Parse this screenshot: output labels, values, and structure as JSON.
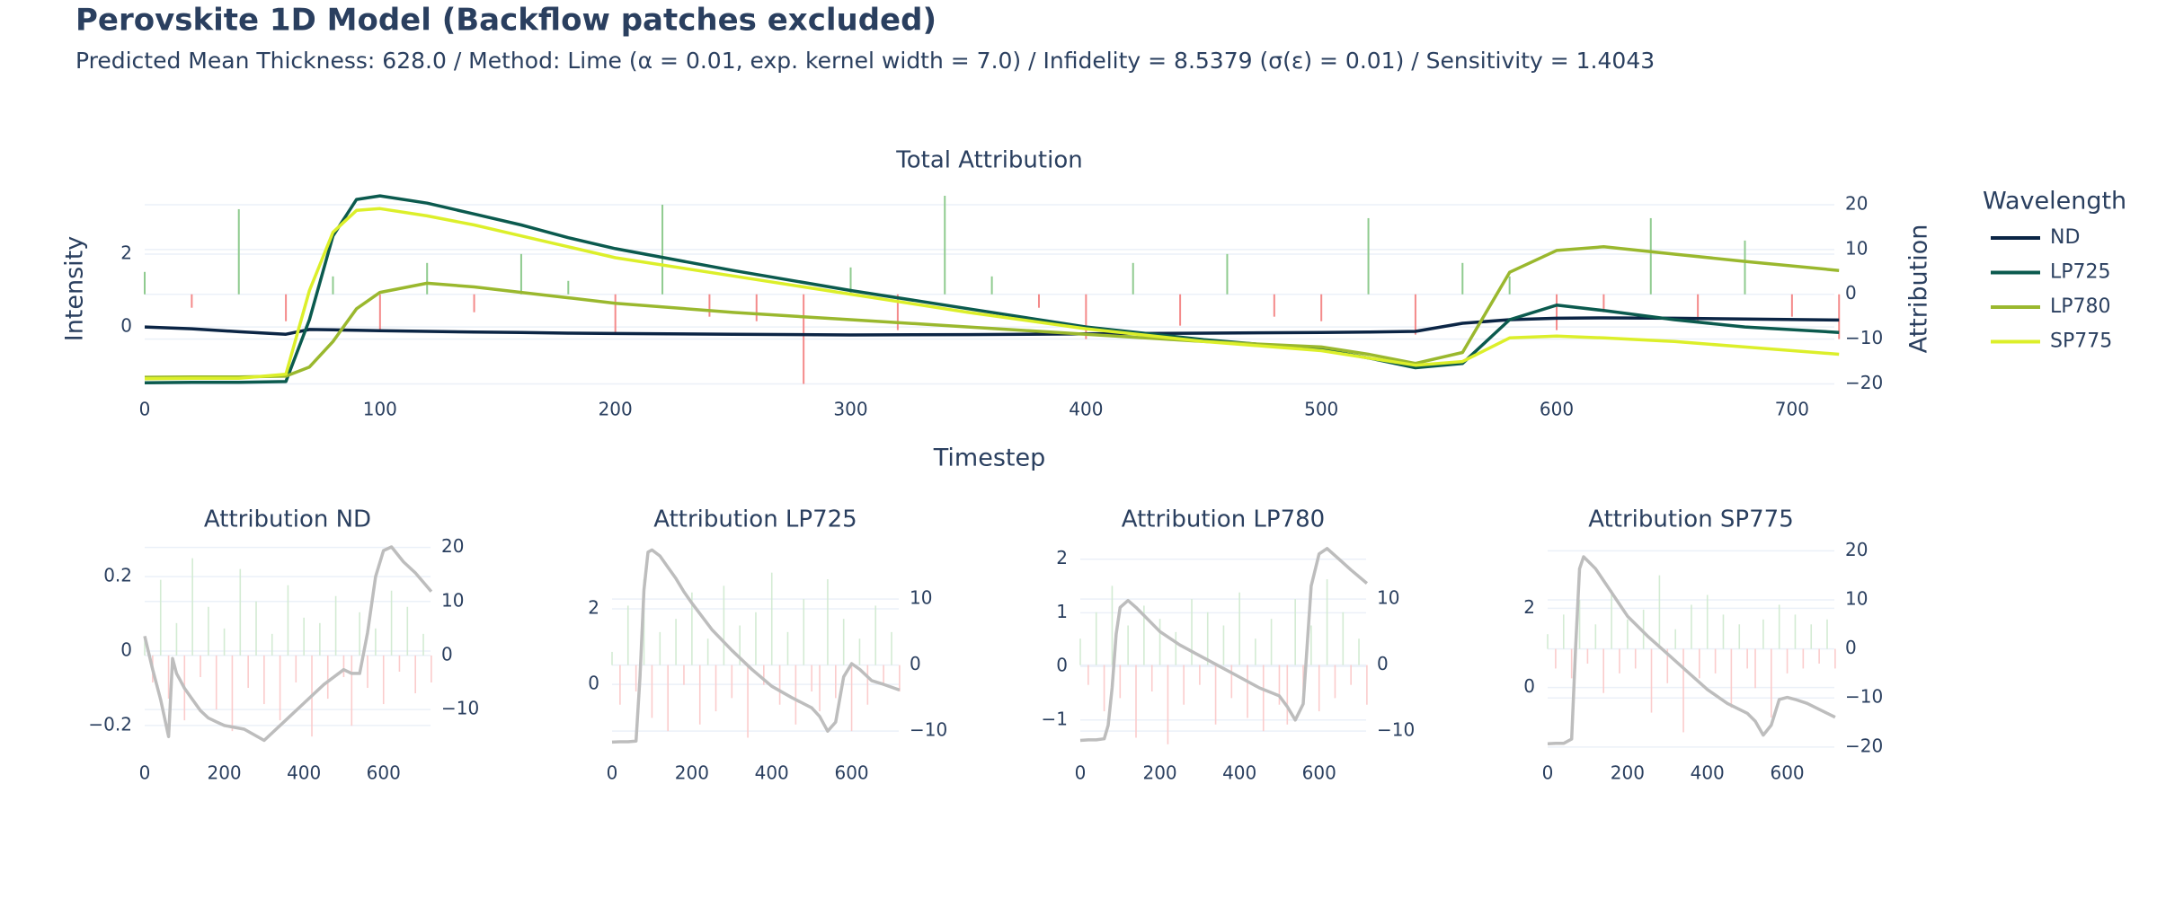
{
  "header": {
    "title": "Perovskite 1D Model (Backflow patches excluded)",
    "subtitle": "Predicted Mean Thickness: 628.0 / Method: Lime (α = 0.01, exp. kernel width = 7.0) / Infidelity = 8.5379 (σ(ε) = 0.01) / Sensitivity = 1.4043"
  },
  "chart_data": [
    {
      "type": "combo",
      "title": "Total Attribution",
      "x_label": "Timestep",
      "y_label": "Intensity",
      "y2_label": "Attribution",
      "legend_title": "Wavelength",
      "grid": true,
      "xlim": [
        0,
        718
      ],
      "xticks": [
        0,
        100,
        200,
        300,
        400,
        500,
        600,
        700
      ],
      "ylim": [
        -1.6,
        3.7
      ],
      "yticks": [
        0,
        2
      ],
      "y2lim": [
        -20.3,
        22.8
      ],
      "y2ticks": [
        {
          "value": -20,
          "label": "−20"
        },
        {
          "value": -10,
          "label": "−10"
        },
        0,
        10,
        20
      ],
      "series": [
        {
          "name": "ND",
          "color": "#0b2545",
          "axis": "y",
          "x": [
            0,
            20,
            40,
            60,
            70,
            80,
            90,
            100,
            120,
            140,
            160,
            180,
            200,
            250,
            300,
            350,
            400,
            450,
            500,
            520,
            540,
            560,
            580,
            600,
            620,
            650,
            680,
            720
          ],
          "values": [
            0,
            -0.05,
            -0.13,
            -0.2,
            -0.07,
            -0.08,
            -0.09,
            -0.1,
            -0.12,
            -0.14,
            -0.15,
            -0.17,
            -0.18,
            -0.2,
            -0.22,
            -0.21,
            -0.19,
            -0.17,
            -0.15,
            -0.14,
            -0.12,
            0.1,
            0.2,
            0.24,
            0.25,
            0.24,
            0.22,
            0.19
          ]
        },
        {
          "name": "LP725",
          "color": "#0b5a4e",
          "axis": "y",
          "x": [
            0,
            20,
            40,
            60,
            70,
            80,
            90,
            100,
            120,
            140,
            160,
            180,
            200,
            250,
            300,
            350,
            400,
            450,
            500,
            520,
            540,
            560,
            580,
            600,
            620,
            650,
            680,
            720
          ],
          "values": [
            -1.53,
            -1.52,
            -1.52,
            -1.5,
            0.2,
            2.5,
            3.5,
            3.6,
            3.4,
            3.1,
            2.8,
            2.45,
            2.15,
            1.55,
            1.0,
            0.5,
            0.0,
            -0.35,
            -0.62,
            -0.85,
            -1.12,
            -1.0,
            0.2,
            0.6,
            0.45,
            0.2,
            0.0,
            -0.15
          ]
        },
        {
          "name": "LP780",
          "color": "#9ab82e",
          "axis": "y",
          "x": [
            0,
            20,
            40,
            60,
            70,
            80,
            90,
            100,
            120,
            140,
            160,
            180,
            200,
            250,
            300,
            350,
            400,
            450,
            500,
            520,
            540,
            560,
            580,
            600,
            620,
            650,
            680,
            720
          ],
          "values": [
            -1.38,
            -1.37,
            -1.37,
            -1.35,
            -1.1,
            -0.4,
            0.5,
            0.95,
            1.2,
            1.1,
            0.95,
            0.8,
            0.65,
            0.4,
            0.2,
            0.0,
            -0.2,
            -0.4,
            -0.55,
            -0.75,
            -1.0,
            -0.7,
            1.5,
            2.1,
            2.2,
            2.0,
            1.8,
            1.55
          ]
        },
        {
          "name": "SP775",
          "color": "#dcef2a",
          "axis": "y",
          "x": [
            0,
            20,
            40,
            60,
            70,
            80,
            90,
            100,
            120,
            140,
            160,
            180,
            200,
            250,
            300,
            350,
            400,
            450,
            500,
            520,
            540,
            560,
            580,
            600,
            620,
            650,
            680,
            720
          ],
          "values": [
            -1.42,
            -1.41,
            -1.41,
            -1.3,
            1.0,
            2.6,
            3.2,
            3.25,
            3.05,
            2.8,
            2.5,
            2.2,
            1.9,
            1.4,
            0.9,
            0.4,
            -0.05,
            -0.4,
            -0.65,
            -0.85,
            -1.05,
            -0.95,
            -0.3,
            -0.25,
            -0.3,
            -0.4,
            -0.55,
            -0.75
          ]
        },
        {
          "kind": "bar",
          "color": "#8fcb8f",
          "negative_color": "#f48a8a",
          "axis": "y2",
          "x": [
            0,
            20,
            40,
            60,
            80,
            100,
            120,
            140,
            160,
            180,
            200,
            220,
            240,
            260,
            280,
            300,
            320,
            340,
            360,
            380,
            400,
            420,
            440,
            460,
            480,
            500,
            520,
            540,
            560,
            580,
            600,
            620,
            640,
            660,
            680,
            700,
            720
          ],
          "values": [
            5,
            -3,
            19,
            -6,
            4,
            -8,
            7,
            -4,
            9,
            3,
            -9,
            20,
            -5,
            -6,
            -20,
            6,
            -8,
            22,
            4,
            -3,
            -10,
            7,
            -7,
            9,
            -5,
            -6,
            17,
            -9,
            7,
            4,
            -8,
            -4,
            17,
            -6,
            12,
            -5,
            -10
          ]
        }
      ]
    },
    {
      "type": "combo",
      "title": "Attribution ND",
      "grid": true,
      "xlim": [
        0,
        718
      ],
      "xticks": [
        0,
        200,
        400,
        600
      ],
      "ylim": [
        -0.263,
        0.28
      ],
      "yticks": [
        {
          "value": -0.2,
          "label": "−0.2"
        },
        0,
        0.2
      ],
      "y2lim": [
        -17.3,
        20.1
      ],
      "y2ticks": [
        {
          "value": -10,
          "label": "−10"
        },
        0,
        10,
        20
      ],
      "series": [
        {
          "kind": "bar",
          "color": "#d3ebd3",
          "negative_color": "#fbcccc",
          "axis": "y2",
          "x": [
            0,
            20,
            40,
            60,
            80,
            100,
            120,
            140,
            160,
            180,
            200,
            220,
            240,
            260,
            280,
            300,
            320,
            340,
            360,
            380,
            400,
            420,
            440,
            460,
            480,
            500,
            520,
            540,
            560,
            580,
            600,
            620,
            640,
            660,
            680,
            700,
            720
          ],
          "values": [
            3,
            -5,
            14,
            -8,
            6,
            -12,
            18,
            -4,
            9,
            -10,
            5,
            -14,
            16,
            -6,
            10,
            -9,
            4,
            -12,
            13,
            -5,
            7,
            -15,
            6,
            -8,
            11,
            -4,
            -13,
            8,
            -6,
            5,
            -9,
            12,
            -3,
            9,
            -7,
            4,
            -5
          ]
        },
        {
          "color": "#bdbdbd",
          "axis": "y",
          "x": [
            0,
            20,
            40,
            60,
            70,
            80,
            90,
            100,
            120,
            140,
            160,
            180,
            200,
            250,
            300,
            350,
            400,
            450,
            500,
            520,
            540,
            560,
            580,
            600,
            620,
            650,
            680,
            720
          ],
          "values": [
            0.04,
            -0.05,
            -0.13,
            -0.23,
            -0.02,
            -0.06,
            -0.08,
            -0.1,
            -0.13,
            -0.16,
            -0.18,
            -0.19,
            -0.2,
            -0.21,
            -0.24,
            -0.19,
            -0.14,
            -0.09,
            -0.05,
            -0.06,
            -0.06,
            0.05,
            0.2,
            0.27,
            0.28,
            0.24,
            0.21,
            0.16
          ]
        }
      ]
    },
    {
      "type": "combo",
      "title": "Attribution LP725",
      "grid": true,
      "xlim": [
        0,
        718
      ],
      "xticks": [
        0,
        200,
        400,
        600
      ],
      "ylim": [
        -1.71,
        3.64
      ],
      "yticks": [
        0,
        2
      ],
      "y2lim": [
        -12.7,
        17.9
      ],
      "y2ticks": [
        {
          "value": -10,
          "label": "−10"
        },
        0,
        10
      ],
      "series": [
        {
          "kind": "bar",
          "color": "#d3ebd3",
          "negative_color": "#fbcccc",
          "axis": "y2",
          "x": [
            0,
            20,
            40,
            60,
            80,
            100,
            120,
            140,
            160,
            180,
            200,
            220,
            240,
            260,
            280,
            300,
            320,
            340,
            360,
            380,
            400,
            420,
            440,
            460,
            480,
            500,
            520,
            540,
            560,
            580,
            600,
            620,
            640,
            660,
            680,
            700,
            720
          ],
          "values": [
            2,
            -6,
            9,
            -4,
            13,
            -8,
            5,
            -10,
            7,
            -3,
            11,
            -9,
            4,
            -7,
            12,
            -5,
            6,
            -11,
            8,
            -3,
            14,
            -6,
            5,
            -9,
            10,
            -4,
            -7,
            13,
            -5,
            7,
            -10,
            4,
            -6,
            9,
            -3,
            5,
            -4
          ]
        },
        {
          "color": "#bdbdbd",
          "axis": "y",
          "x": [
            0,
            20,
            40,
            60,
            70,
            80,
            90,
            100,
            120,
            140,
            160,
            180,
            200,
            250,
            300,
            350,
            400,
            450,
            500,
            520,
            540,
            560,
            580,
            600,
            620,
            650,
            680,
            720
          ],
          "values": [
            -1.53,
            -1.52,
            -1.52,
            -1.5,
            0.2,
            2.5,
            3.5,
            3.56,
            3.4,
            3.1,
            2.8,
            2.45,
            2.15,
            1.45,
            0.9,
            0.4,
            -0.05,
            -0.35,
            -0.62,
            -0.85,
            -1.24,
            -1.0,
            0.2,
            0.55,
            0.4,
            0.1,
            0.0,
            -0.15
          ]
        }
      ]
    },
    {
      "type": "combo",
      "title": "Attribution LP780",
      "grid": true,
      "xlim": [
        0,
        718
      ],
      "xticks": [
        0,
        200,
        400,
        600
      ],
      "ylim": [
        -1.54,
        2.23
      ],
      "yticks": [
        {
          "value": -1,
          "label": "−1"
        },
        0,
        1,
        2
      ],
      "y2lim": [
        -12.7,
        17.9
      ],
      "y2ticks": [
        {
          "value": -10,
          "label": "−10"
        },
        0,
        10
      ],
      "series": [
        {
          "kind": "bar",
          "color": "#d3ebd3",
          "negative_color": "#fbcccc",
          "axis": "y2",
          "x": [
            0,
            20,
            40,
            60,
            80,
            100,
            120,
            140,
            160,
            180,
            200,
            220,
            240,
            260,
            280,
            300,
            320,
            340,
            360,
            380,
            400,
            420,
            440,
            460,
            480,
            500,
            520,
            540,
            560,
            580,
            600,
            620,
            640,
            660,
            680,
            700,
            720
          ],
          "values": [
            4,
            -3,
            8,
            -7,
            12,
            -5,
            6,
            -11,
            9,
            -4,
            7,
            -12,
            5,
            -6,
            10,
            -3,
            8,
            -9,
            6,
            -5,
            11,
            -8,
            4,
            -10,
            7,
            -6,
            -9,
            10,
            -4,
            6,
            -7,
            13,
            -5,
            8,
            -3,
            4,
            -6
          ]
        },
        {
          "color": "#bdbdbd",
          "axis": "y",
          "x": [
            0,
            20,
            40,
            60,
            70,
            80,
            90,
            100,
            120,
            140,
            160,
            180,
            200,
            250,
            300,
            350,
            400,
            450,
            500,
            520,
            540,
            560,
            580,
            600,
            620,
            650,
            680,
            720
          ],
          "values": [
            -1.38,
            -1.37,
            -1.37,
            -1.35,
            -1.1,
            -0.4,
            0.6,
            1.1,
            1.23,
            1.1,
            0.95,
            0.8,
            0.65,
            0.4,
            0.2,
            0.0,
            -0.2,
            -0.4,
            -0.55,
            -0.75,
            -1.0,
            -0.7,
            1.5,
            2.1,
            2.2,
            2.0,
            1.8,
            1.55
          ]
        }
      ]
    },
    {
      "type": "combo",
      "title": "Attribution SP775",
      "grid": true,
      "xlim": [
        0,
        718
      ],
      "xticks": [
        0,
        200,
        400,
        600
      ],
      "ylim": [
        -1.55,
        3.55
      ],
      "yticks": [
        0,
        2
      ],
      "y2lim": [
        -20.4,
        20.8
      ],
      "y2ticks": [
        {
          "value": -20,
          "label": "−20"
        },
        {
          "value": -10,
          "label": "−10"
        },
        0,
        10,
        20
      ],
      "series": [
        {
          "kind": "bar",
          "color": "#d3ebd3",
          "negative_color": "#fbcccc",
          "axis": "y2",
          "x": [
            0,
            20,
            40,
            60,
            80,
            100,
            120,
            140,
            160,
            180,
            200,
            220,
            240,
            260,
            280,
            300,
            320,
            340,
            360,
            380,
            400,
            420,
            440,
            460,
            480,
            500,
            520,
            540,
            560,
            580,
            600,
            620,
            640,
            660,
            680,
            700,
            720
          ],
          "values": [
            3,
            -4,
            7,
            -6,
            10,
            -3,
            5,
            -9,
            12,
            -5,
            6,
            -4,
            8,
            -13,
            15,
            -7,
            4,
            -17,
            9,
            -6,
            11,
            -5,
            7,
            -12,
            5,
            -4,
            -8,
            6,
            -14,
            9,
            -5,
            7,
            -4,
            5,
            -3,
            6,
            -4
          ]
        },
        {
          "color": "#bdbdbd",
          "axis": "y",
          "x": [
            0,
            20,
            40,
            60,
            70,
            80,
            90,
            100,
            120,
            140,
            160,
            180,
            200,
            250,
            300,
            350,
            400,
            450,
            500,
            520,
            540,
            560,
            580,
            600,
            620,
            650,
            680,
            720
          ],
          "values": [
            -1.42,
            -1.41,
            -1.41,
            -1.3,
            1.0,
            3.0,
            3.3,
            3.2,
            3.0,
            2.7,
            2.4,
            2.1,
            1.8,
            1.3,
            0.85,
            0.4,
            -0.05,
            -0.4,
            -0.65,
            -0.85,
            -1.2,
            -0.95,
            -0.3,
            -0.25,
            -0.3,
            -0.4,
            -0.55,
            -0.75
          ]
        }
      ]
    }
  ]
}
